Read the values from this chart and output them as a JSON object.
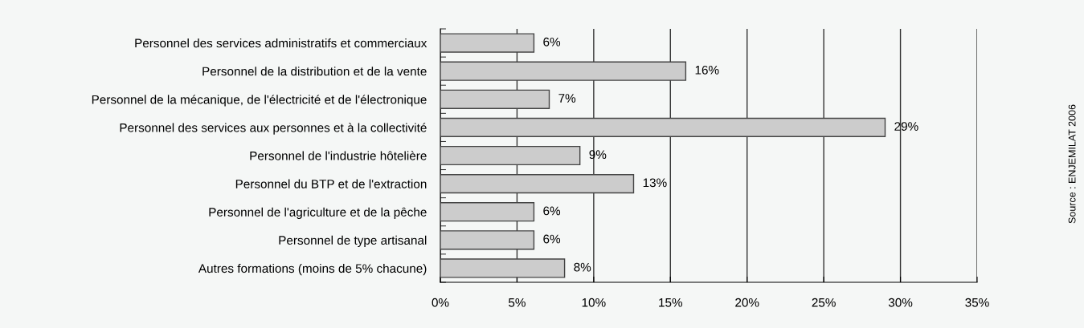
{
  "chart_data": {
    "type": "bar",
    "orientation": "horizontal",
    "categories": [
      "Personnel des services administratifs et commerciaux",
      "Personnel de la distribution et de la vente",
      "Personnel de la mécanique, de l'électricité et de l'électronique",
      "Personnel des services aux personnes et à la collectivité",
      "Personnel de l'industrie hôtelière",
      "Personnel du BTP et de l'extraction",
      "Personnel de l'agriculture et de la pêche",
      "Personnel de type artisanal",
      "Autres formations (moins de 5% chacune)"
    ],
    "values": [
      6.1,
      16.0,
      7.1,
      29.0,
      9.1,
      12.6,
      6.1,
      6.1,
      8.1
    ],
    "value_labels": [
      "6%",
      "16%",
      "7%",
      "29%",
      "9%",
      "13%",
      "6%",
      "6%",
      "8%"
    ],
    "color": "#cccccc",
    "xlim": [
      0,
      35
    ],
    "xticks": [
      {
        "value": 0,
        "label": "0%"
      },
      {
        "value": 5,
        "label": "5%"
      },
      {
        "value": 10,
        "label": "10%"
      },
      {
        "value": 15,
        "label": "15%"
      },
      {
        "value": 20,
        "label": "20%"
      },
      {
        "value": 25,
        "label": "25%"
      },
      {
        "value": 30,
        "label": "30%"
      },
      {
        "value": 35,
        "label": "35%"
      }
    ],
    "grid": "x",
    "annotations": [
      "Source : ENJEMILAT 2006"
    ]
  }
}
